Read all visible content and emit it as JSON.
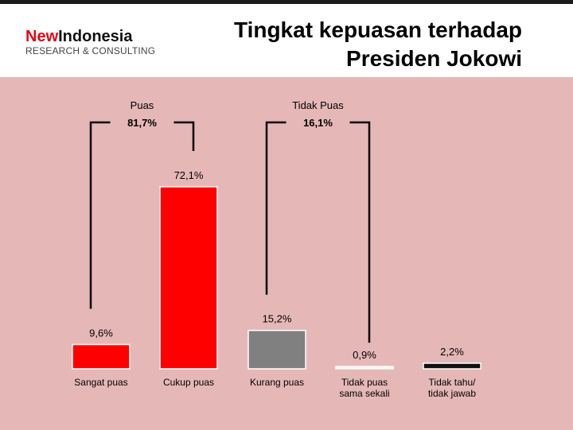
{
  "header": {
    "logo_new": "New",
    "logo_rest": "Indonesia",
    "logo_sub": "RESEARCH & CONSULTING",
    "title_line1": "Tingkat kepuasan terhadap",
    "title_line2": "Presiden Jokowi"
  },
  "colors": {
    "background": "#e5b8b7",
    "bar_red": "#ff0000",
    "bar_gray": "#808080",
    "bar_black": "#111111",
    "bar_light": "#f5f0f0",
    "logo_red": "#e30613"
  },
  "chart_data": {
    "type": "bar",
    "categories": [
      [
        "Sangat puas"
      ],
      [
        "Cukup puas"
      ],
      [
        "Kurang puas"
      ],
      [
        "Tidak puas",
        "sama sekali"
      ],
      [
        "Tidak tahu/",
        "tidak jawab"
      ]
    ],
    "values": [
      9.6,
      72.1,
      15.2,
      0.9,
      2.2
    ],
    "value_labels": [
      "9,6%",
      "72,1%",
      "15,2%",
      "0,9%",
      "2,2%"
    ],
    "bar_colors": [
      "#ff0000",
      "#ff0000",
      "#808080",
      "#f5f0f0",
      "#111111"
    ],
    "groups": [
      {
        "label": "Puas",
        "total_label": "81,7%",
        "members": [
          0,
          1
        ]
      },
      {
        "label": "Tidak Puas",
        "total_label": "16,1%",
        "members": [
          2,
          3
        ]
      }
    ],
    "ylim": [
      0,
      72.1
    ],
    "grid": false
  }
}
